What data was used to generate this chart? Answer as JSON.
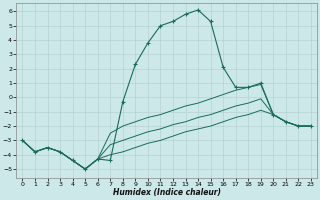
{
  "xlabel": "Humidex (Indice chaleur)",
  "bg_color": "#cce8e8",
  "line_color": "#1a6b5a",
  "grid_color": "#b0cccc",
  "xlim": [
    -0.5,
    23.5
  ],
  "ylim": [
    -5.6,
    6.6
  ],
  "xticks": [
    0,
    1,
    2,
    3,
    4,
    5,
    6,
    7,
    8,
    9,
    10,
    11,
    12,
    13,
    14,
    15,
    16,
    17,
    18,
    19,
    20,
    21,
    22,
    23
  ],
  "yticks": [
    -5,
    -4,
    -3,
    -2,
    -1,
    0,
    1,
    2,
    3,
    4,
    5,
    6
  ],
  "curve1_x": [
    0,
    1,
    2,
    3,
    4,
    5,
    6,
    7,
    8,
    9,
    10,
    11,
    12,
    13,
    14,
    15,
    16,
    17,
    18,
    19,
    20,
    21,
    22,
    23
  ],
  "curve1_y": [
    -3.0,
    -3.8,
    -3.5,
    -3.8,
    -4.4,
    -5.0,
    -4.3,
    -4.4,
    -0.3,
    2.3,
    3.8,
    5.0,
    5.3,
    5.8,
    6.1,
    5.3,
    2.1,
    0.7,
    0.7,
    1.0,
    -1.2,
    -1.7,
    -2.0,
    -2.0
  ],
  "curve2_x": [
    0,
    1,
    2,
    3,
    4,
    5,
    6,
    7,
    8,
    9,
    10,
    11,
    12,
    13,
    14,
    15,
    16,
    17,
    18,
    19,
    20,
    21,
    22,
    23
  ],
  "curve2_y": [
    -3.0,
    -3.8,
    -3.5,
    -3.8,
    -4.4,
    -5.0,
    -4.3,
    -2.5,
    -2.0,
    -1.7,
    -1.4,
    -1.2,
    -0.9,
    -0.6,
    -0.4,
    -0.1,
    0.2,
    0.5,
    0.7,
    0.9,
    -1.2,
    -1.7,
    -2.0,
    -2.0
  ],
  "curve3_x": [
    0,
    1,
    2,
    3,
    4,
    5,
    6,
    7,
    8,
    9,
    10,
    11,
    12,
    13,
    14,
    15,
    16,
    17,
    18,
    19,
    20,
    21,
    22,
    23
  ],
  "curve3_y": [
    -3.0,
    -3.8,
    -3.5,
    -3.8,
    -4.4,
    -5.0,
    -4.3,
    -3.3,
    -3.0,
    -2.7,
    -2.4,
    -2.2,
    -1.9,
    -1.7,
    -1.4,
    -1.2,
    -0.9,
    -0.6,
    -0.4,
    -0.1,
    -1.2,
    -1.7,
    -2.0,
    -2.0
  ],
  "curve4_x": [
    0,
    1,
    2,
    3,
    4,
    5,
    6,
    7,
    8,
    9,
    10,
    11,
    12,
    13,
    14,
    15,
    16,
    17,
    18,
    19,
    20,
    21,
    22,
    23
  ],
  "curve4_y": [
    -3.0,
    -3.8,
    -3.5,
    -3.8,
    -4.4,
    -5.0,
    -4.3,
    -4.0,
    -3.8,
    -3.5,
    -3.2,
    -3.0,
    -2.7,
    -2.4,
    -2.2,
    -2.0,
    -1.7,
    -1.4,
    -1.2,
    -0.9,
    -1.2,
    -1.7,
    -2.0,
    -2.0
  ]
}
